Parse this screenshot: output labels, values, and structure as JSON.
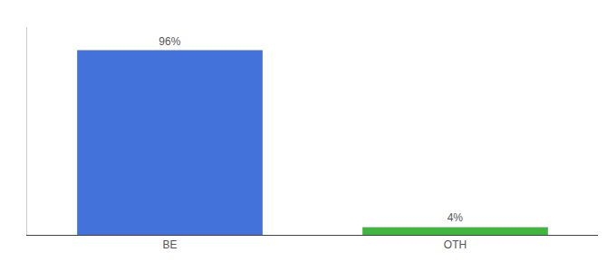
{
  "chart_data": {
    "type": "bar",
    "categories": [
      "BE",
      "OTH"
    ],
    "values": [
      96,
      4
    ],
    "value_labels": [
      "96%",
      "4%"
    ],
    "data_labels": true,
    "colors": [
      "#4472db",
      "#3db83d"
    ],
    "ylim": [
      0,
      108
    ],
    "grid": false,
    "tick_labels": "x"
  }
}
